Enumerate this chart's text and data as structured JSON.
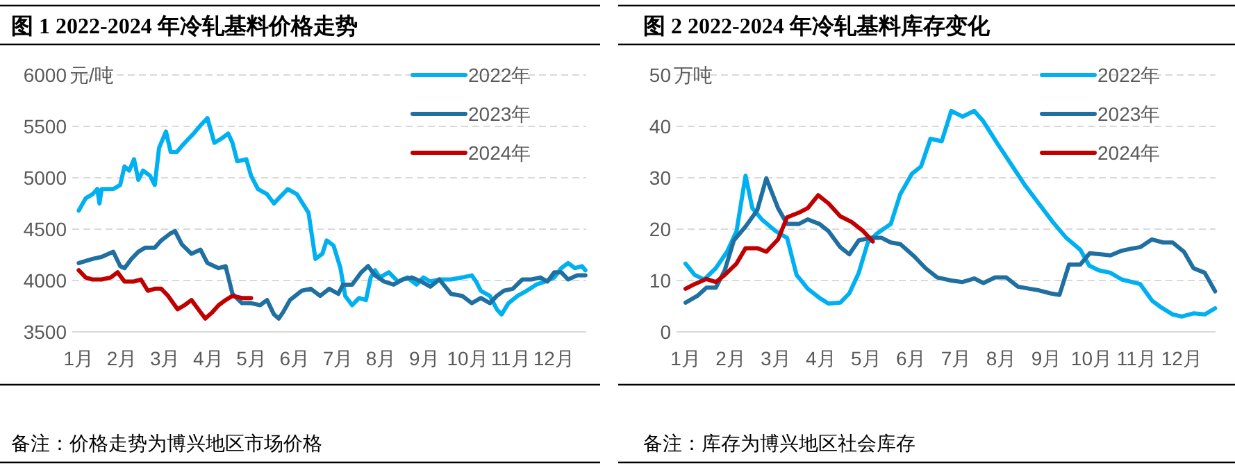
{
  "chart_data": [
    {
      "type": "line",
      "title": "图 1 2022-2024 年冷轧基料价格走势",
      "ylabel": "元/吨",
      "annotations": [
        "备注：价格走势为博兴地区市场价格"
      ],
      "xlim": [
        0.85,
        12.75
      ],
      "ylim": [
        3500,
        6000
      ],
      "xticks": [
        {
          "value": 1,
          "label": "1月"
        },
        {
          "value": 2,
          "label": "2月"
        },
        {
          "value": 3,
          "label": "3月"
        },
        {
          "value": 4,
          "label": "4月"
        },
        {
          "value": 5,
          "label": "5月"
        },
        {
          "value": 6,
          "label": "6月"
        },
        {
          "value": 7,
          "label": "7月"
        },
        {
          "value": 8,
          "label": "8月"
        },
        {
          "value": 9,
          "label": "9月"
        },
        {
          "value": 10,
          "label": "10月"
        },
        {
          "value": 11,
          "label": "11月"
        },
        {
          "value": 12,
          "label": "12月"
        }
      ],
      "yticks": [
        3500,
        4000,
        4500,
        5000,
        5500,
        6000
      ],
      "grid": "y",
      "legend": "top right",
      "line_style": "solid",
      "marker": "none",
      "series": [
        {
          "name": "2022年",
          "color": "#00b0f0",
          "x": [
            1.0,
            1.16,
            1.32,
            1.43,
            1.48,
            1.53,
            1.8,
            1.96,
            2.06,
            2.17,
            2.28,
            2.38,
            2.49,
            2.65,
            2.76,
            2.86,
            3.02,
            3.13,
            3.27,
            3.39,
            3.5,
            3.66,
            3.82,
            3.98,
            4.14,
            4.3,
            4.46,
            4.56,
            4.67,
            4.88,
            4.99,
            5.15,
            5.36,
            5.52,
            5.63,
            5.84,
            6.05,
            6.32,
            6.48,
            6.64,
            6.74,
            6.9,
            7.06,
            7.17,
            7.33,
            7.49,
            7.65,
            7.76,
            7.86,
            7.97,
            8.18,
            8.39,
            8.61,
            8.82,
            8.98,
            9.14,
            9.35,
            9.62,
            9.88,
            10.1,
            10.2,
            10.31,
            10.52,
            10.68,
            10.79,
            10.95,
            11.16,
            11.37,
            11.59,
            11.8,
            12.01,
            12.17,
            12.33,
            12.49,
            12.65,
            12.73
          ],
          "values": [
            4680,
            4800,
            4840,
            4890,
            4750,
            4890,
            4890,
            4930,
            5110,
            5070,
            5180,
            4980,
            5070,
            5020,
            4930,
            5290,
            5450,
            5250,
            5250,
            5310,
            5360,
            5430,
            5510,
            5580,
            5340,
            5380,
            5430,
            5340,
            5160,
            5180,
            5020,
            4890,
            4840,
            4750,
            4800,
            4890,
            4840,
            4660,
            4210,
            4260,
            4390,
            4340,
            4120,
            3850,
            3760,
            3830,
            3810,
            4030,
            4100,
            4030,
            4080,
            3990,
            4030,
            3960,
            4030,
            3990,
            4010,
            4010,
            4030,
            4050,
            3990,
            3900,
            3850,
            3720,
            3670,
            3780,
            3850,
            3900,
            3960,
            3990,
            4030,
            4120,
            4170,
            4120,
            4140,
            4100
          ]
        },
        {
          "name": "2023年",
          "color": "#1f6fa0",
          "x": [
            1.0,
            1.16,
            1.32,
            1.53,
            1.8,
            1.96,
            2.06,
            2.22,
            2.38,
            2.54,
            2.76,
            2.91,
            3.13,
            3.23,
            3.39,
            3.61,
            3.82,
            3.98,
            4.24,
            4.4,
            4.56,
            4.78,
            4.99,
            5.2,
            5.36,
            5.52,
            5.63,
            5.73,
            5.89,
            6.16,
            6.37,
            6.59,
            6.8,
            7.01,
            7.12,
            7.33,
            7.54,
            7.7,
            7.86,
            8.07,
            8.29,
            8.5,
            8.71,
            8.93,
            9.14,
            9.35,
            9.62,
            9.88,
            10.1,
            10.31,
            10.52,
            10.68,
            10.84,
            11.05,
            11.27,
            11.48,
            11.69,
            11.85,
            12.01,
            12.17,
            12.33,
            12.54,
            12.73
          ],
          "values": [
            4170,
            4190,
            4210,
            4230,
            4280,
            4140,
            4120,
            4210,
            4280,
            4320,
            4320,
            4390,
            4460,
            4480,
            4350,
            4260,
            4300,
            4170,
            4120,
            4140,
            3870,
            3780,
            3780,
            3760,
            3810,
            3670,
            3630,
            3690,
            3810,
            3900,
            3920,
            3850,
            3920,
            3870,
            3960,
            3960,
            4080,
            4140,
            4050,
            3990,
            3960,
            4010,
            4030,
            3990,
            3940,
            4010,
            3870,
            3850,
            3780,
            3830,
            3780,
            3850,
            3900,
            3920,
            4010,
            4010,
            4030,
            3990,
            4080,
            4080,
            4010,
            4050,
            4050
          ]
        },
        {
          "name": "2024年",
          "color": "#c00000",
          "x": [
            1.0,
            1.16,
            1.32,
            1.53,
            1.74,
            1.9,
            2.06,
            2.28,
            2.44,
            2.6,
            2.76,
            2.91,
            3.07,
            3.29,
            3.45,
            3.61,
            3.77,
            3.93,
            4.09,
            4.24,
            4.4,
            4.56,
            4.78,
            4.99
          ],
          "values": [
            4100,
            4030,
            4010,
            4010,
            4030,
            4080,
            3990,
            3990,
            4010,
            3900,
            3920,
            3920,
            3850,
            3720,
            3760,
            3810,
            3720,
            3630,
            3690,
            3760,
            3810,
            3850,
            3830,
            3830
          ]
        }
      ]
    },
    {
      "type": "line",
      "title": "图 2 2022-2024 年冷轧基料库存变化",
      "ylabel": "万吨",
      "annotations": [
        "备注：库存为博兴地区社会库存"
      ],
      "xlim": [
        0.8,
        12.75
      ],
      "ylim": [
        0,
        50
      ],
      "xticks": [
        {
          "value": 1,
          "label": "1月"
        },
        {
          "value": 2,
          "label": "2月"
        },
        {
          "value": 3,
          "label": "3月"
        },
        {
          "value": 4,
          "label": "4月"
        },
        {
          "value": 5,
          "label": "5月"
        },
        {
          "value": 6,
          "label": "6月"
        },
        {
          "value": 7,
          "label": "7月"
        },
        {
          "value": 8,
          "label": "8月"
        },
        {
          "value": 9,
          "label": "9月"
        },
        {
          "value": 10,
          "label": "10月"
        },
        {
          "value": 11,
          "label": "11月"
        },
        {
          "value": 12,
          "label": "12月"
        }
      ],
      "yticks": [
        0,
        10,
        20,
        30,
        40,
        50
      ],
      "grid": "y",
      "legend": "top right",
      "line_style": "solid",
      "marker": "none",
      "series": [
        {
          "name": "2022年",
          "color": "#00b0f0",
          "x": [
            1.0,
            1.2,
            1.41,
            1.67,
            1.92,
            2.13,
            2.33,
            2.48,
            2.69,
            3.0,
            3.25,
            3.46,
            3.71,
            3.97,
            4.17,
            4.43,
            4.63,
            4.84,
            5.04,
            5.25,
            5.55,
            5.76,
            6.02,
            6.22,
            6.43,
            6.68,
            6.89,
            7.14,
            7.4,
            7.6,
            7.91,
            8.22,
            8.52,
            8.83,
            9.14,
            9.44,
            9.75,
            9.95,
            10.16,
            10.42,
            10.67,
            11.08,
            11.34,
            11.54,
            11.8,
            12.0,
            12.26,
            12.51,
            12.74
          ],
          "values": [
            13.3,
            11.1,
            10.2,
            12.4,
            15.6,
            19.6,
            30.4,
            24.1,
            21.9,
            19.6,
            18.3,
            11.1,
            8.4,
            6.6,
            5.5,
            5.7,
            7.5,
            11.5,
            17.4,
            19.2,
            21.0,
            26.8,
            30.8,
            32.2,
            37.6,
            37.1,
            43.0,
            41.9,
            43.0,
            41.0,
            36.7,
            32.6,
            28.6,
            25.0,
            21.4,
            18.3,
            16.0,
            12.9,
            12.0,
            11.5,
            10.2,
            9.3,
            6.1,
            4.8,
            3.4,
            3.0,
            3.6,
            3.4,
            4.6
          ]
        },
        {
          "name": "2023年",
          "color": "#1f6fa0",
          "x": [
            1.0,
            1.26,
            1.46,
            1.67,
            1.87,
            2.07,
            2.33,
            2.59,
            2.79,
            3.05,
            3.25,
            3.51,
            3.71,
            3.97,
            4.17,
            4.43,
            4.63,
            4.84,
            5.09,
            5.35,
            5.55,
            5.76,
            6.07,
            6.32,
            6.58,
            6.89,
            7.14,
            7.4,
            7.6,
            7.86,
            8.11,
            8.37,
            8.63,
            8.83,
            9.09,
            9.29,
            9.5,
            9.75,
            9.96,
            10.21,
            10.42,
            10.67,
            10.88,
            11.08,
            11.34,
            11.59,
            11.8,
            12.05,
            12.26,
            12.51,
            12.74
          ],
          "values": [
            5.7,
            7.0,
            8.6,
            8.6,
            12.0,
            17.8,
            20.5,
            23.7,
            29.9,
            24.1,
            21.0,
            21.0,
            21.9,
            21.0,
            19.6,
            16.5,
            15.1,
            17.8,
            18.3,
            18.3,
            17.4,
            17.1,
            14.7,
            12.4,
            10.6,
            10.0,
            9.7,
            10.4,
            9.5,
            10.6,
            10.6,
            8.8,
            8.4,
            8.1,
            7.5,
            7.2,
            13.1,
            13.1,
            15.3,
            15.1,
            14.9,
            15.8,
            16.2,
            16.5,
            18.0,
            17.4,
            17.4,
            15.6,
            12.4,
            11.5,
            7.9
          ]
        },
        {
          "name": "2024年",
          "color": "#c00000",
          "x": [
            1.0,
            1.2,
            1.46,
            1.67,
            1.87,
            2.13,
            2.33,
            2.59,
            2.79,
            3.05,
            3.25,
            3.51,
            3.71,
            3.94,
            4.17,
            4.43,
            4.68,
            4.94,
            5.15
          ],
          "values": [
            8.4,
            9.3,
            10.3,
            9.7,
            11.1,
            13.3,
            16.3,
            16.3,
            15.6,
            18.0,
            22.3,
            23.2,
            24.1,
            26.6,
            25.0,
            22.5,
            21.4,
            19.6,
            17.6
          ]
        }
      ]
    }
  ]
}
